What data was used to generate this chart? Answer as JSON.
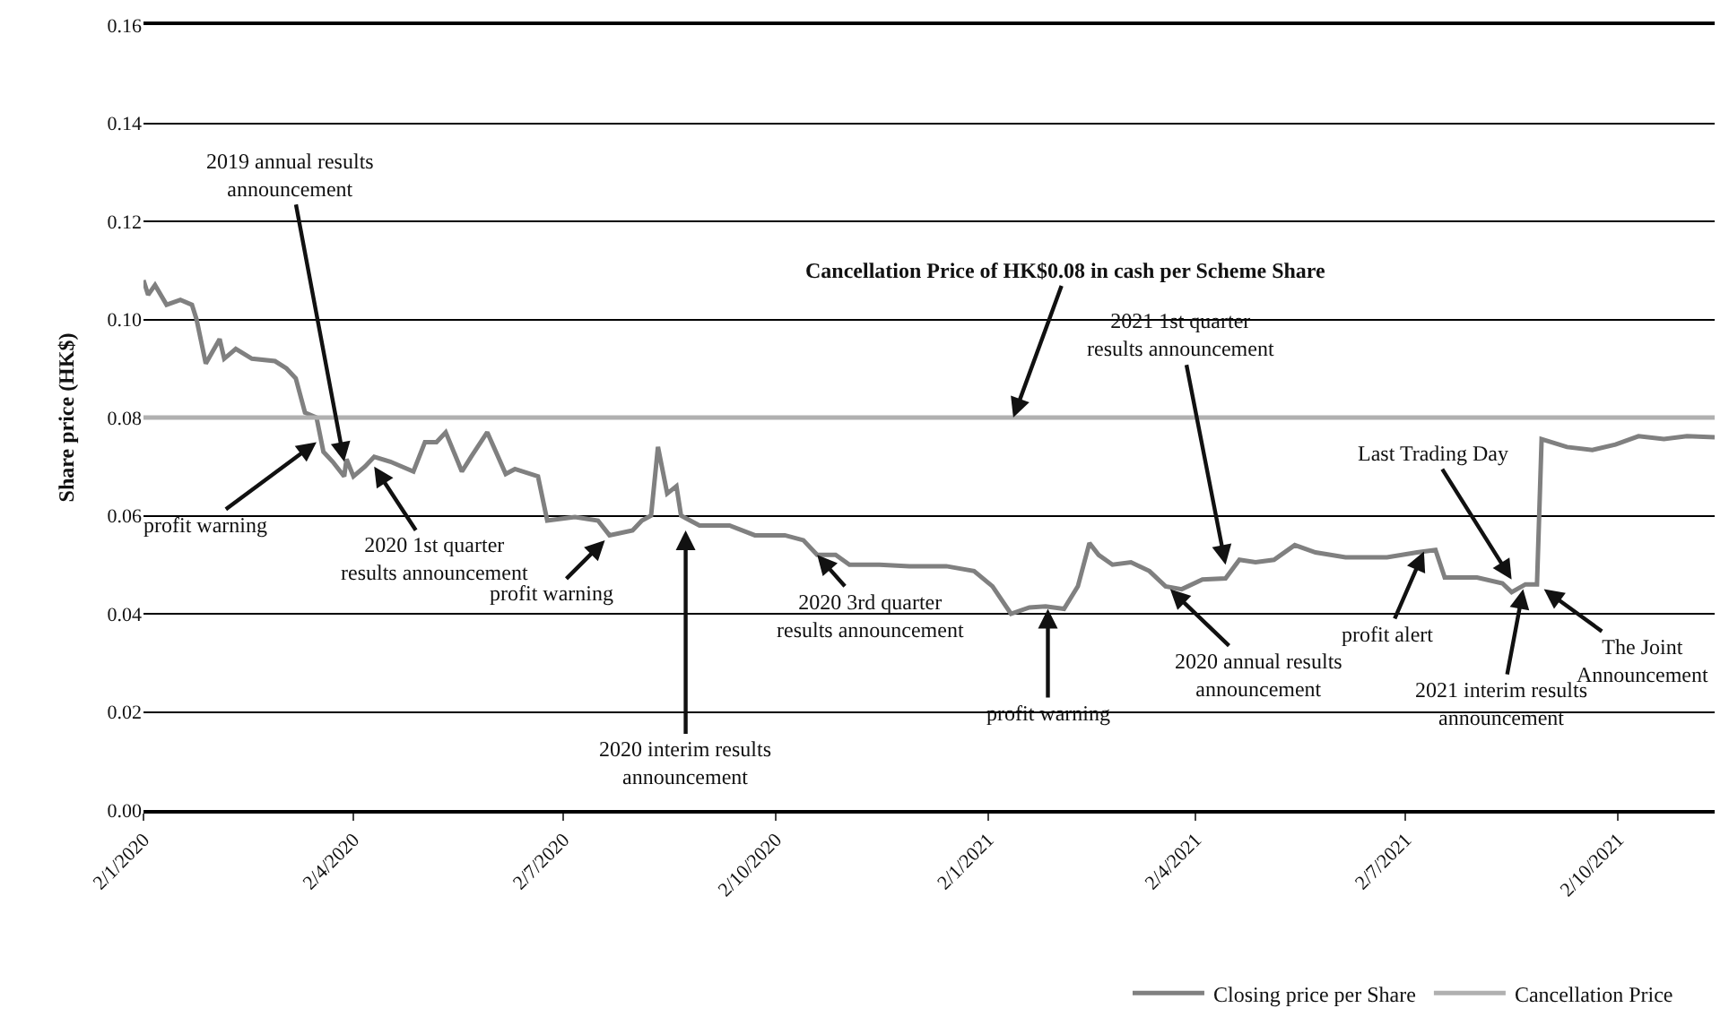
{
  "chart_data": {
    "type": "line",
    "ylabel": "Share price (HK$)",
    "xlim": [
      "2020-01-02",
      "2021-11-13"
    ],
    "xticks": [
      {
        "value": "2020-01-02",
        "label": "2/1/2020"
      },
      {
        "value": "2020-04-02",
        "label": "2/4/2020"
      },
      {
        "value": "2020-07-02",
        "label": "2/7/2020"
      },
      {
        "value": "2020-10-02",
        "label": "2/10/2020"
      },
      {
        "value": "2021-01-02",
        "label": "2/1/2021"
      },
      {
        "value": "2021-04-02",
        "label": "2/4/2021"
      },
      {
        "value": "2021-07-02",
        "label": "2/7/2021"
      },
      {
        "value": "2021-10-02",
        "label": "2/10/2021"
      }
    ],
    "ylim": [
      0,
      0.16
    ],
    "yticks": [
      {
        "value": 0,
        "label": "0.00"
      },
      {
        "value": 0.02,
        "label": "0.02"
      },
      {
        "value": 0.04,
        "label": "0.04"
      },
      {
        "value": 0.06,
        "label": "0.06"
      },
      {
        "value": 0.08,
        "label": "0.08"
      },
      {
        "value": 0.1,
        "label": "0.10"
      },
      {
        "value": 0.12,
        "label": "0.12"
      },
      {
        "value": 0.14,
        "label": "0.14"
      },
      {
        "value": 0.16,
        "label": "0.16"
      }
    ],
    "grid": "y",
    "legend": "bottom",
    "marker": "none",
    "line_style": "solid",
    "series": [
      {
        "name": "Closing price per Share",
        "color": "#808080",
        "x": [
          "2020-01-02",
          "2020-01-04",
          "2020-01-07",
          "2020-01-12",
          "2020-01-18",
          "2020-01-23",
          "2020-01-25",
          "2020-01-29",
          "2020-02-04",
          "2020-02-06",
          "2020-02-11",
          "2020-02-18",
          "2020-02-28",
          "2020-03-04",
          "2020-03-08",
          "2020-03-12",
          "2020-03-17",
          "2020-03-20",
          "2020-03-24",
          "2020-03-29",
          "2020-03-30",
          "2020-04-02",
          "2020-04-07",
          "2020-04-11",
          "2020-04-18",
          "2020-04-28",
          "2020-05-03",
          "2020-05-08",
          "2020-05-12",
          "2020-05-19",
          "2020-05-23",
          "2020-05-30",
          "2020-06-07",
          "2020-06-11",
          "2020-06-21",
          "2020-06-25",
          "2020-07-07",
          "2020-07-17",
          "2020-07-22",
          "2020-08-01",
          "2020-08-05",
          "2020-08-09",
          "2020-08-12",
          "2020-08-16",
          "2020-08-20",
          "2020-08-22",
          "2020-08-30",
          "2020-09-12",
          "2020-09-23",
          "2020-10-06",
          "2020-10-14",
          "2020-10-20",
          "2020-10-28",
          "2020-11-03",
          "2020-11-16",
          "2020-11-29",
          "2020-12-15",
          "2020-12-27",
          "2021-01-04",
          "2021-01-12",
          "2021-01-20",
          "2021-01-27",
          "2021-02-04",
          "2021-02-10",
          "2021-02-15",
          "2021-02-19",
          "2021-02-25",
          "2021-03-05",
          "2021-03-13",
          "2021-03-20",
          "2021-03-27",
          "2021-04-05",
          "2021-04-15",
          "2021-04-21",
          "2021-04-28",
          "2021-05-06",
          "2021-05-15",
          "2021-05-24",
          "2021-06-06",
          "2021-06-24",
          "2021-07-07",
          "2021-07-15",
          "2021-07-19",
          "2021-08-02",
          "2021-08-13",
          "2021-08-17",
          "2021-08-23",
          "2021-08-28",
          "2021-08-30",
          "2021-09-10",
          "2021-09-21",
          "2021-10-01",
          "2021-10-11",
          "2021-10-22",
          "2021-11-01",
          "2021-11-13"
        ],
        "values": [
          0.108,
          0.105,
          0.107,
          0.103,
          0.104,
          0.103,
          0.1,
          0.091,
          0.096,
          0.092,
          0.094,
          0.092,
          0.0915,
          0.09,
          0.088,
          0.081,
          0.08,
          0.073,
          0.071,
          0.068,
          0.0715,
          0.068,
          0.07,
          0.072,
          0.071,
          0.069,
          0.075,
          0.075,
          0.077,
          0.069,
          0.072,
          0.077,
          0.0685,
          0.0695,
          0.068,
          0.059,
          0.0597,
          0.059,
          0.056,
          0.057,
          0.059,
          0.06,
          0.074,
          0.0645,
          0.066,
          0.06,
          0.058,
          0.058,
          0.056,
          0.056,
          0.055,
          0.052,
          0.052,
          0.05,
          0.05,
          0.0497,
          0.0497,
          0.0487,
          0.0456,
          0.04,
          0.0413,
          0.0415,
          0.041,
          0.0456,
          0.0544,
          0.052,
          0.05,
          0.0505,
          0.0487,
          0.0456,
          0.045,
          0.047,
          0.0472,
          0.051,
          0.0505,
          0.051,
          0.054,
          0.0525,
          0.0515,
          0.0515,
          0.0525,
          0.053,
          0.0474,
          0.0474,
          0.0462,
          0.0444,
          0.046,
          0.046,
          0.0756,
          0.074,
          0.0734,
          0.0745,
          0.0762,
          0.0756,
          0.0762,
          0.076
        ]
      },
      {
        "name": "Cancellation Price",
        "color": "#b0b0b0",
        "x": [
          "2020-01-02",
          "2021-11-13"
        ],
        "values": [
          0.08,
          0.08
        ]
      }
    ],
    "annotations": [
      {
        "text": "2019 annual results\nannouncement",
        "x": "2020-03-29",
        "y": 0.071
      },
      {
        "text": "profit warning",
        "x": "2020-03-17",
        "y": 0.075
      },
      {
        "text": "2020 1st quarter\nresults announcement",
        "x": "2020-04-11",
        "y": 0.07
      },
      {
        "text": "profit warning",
        "x": "2020-07-20",
        "y": 0.055
      },
      {
        "text": "2020 interim results\nannouncement",
        "x": "2020-08-24",
        "y": 0.057
      },
      {
        "text": "2020 3rd quarter\nresults announcement",
        "x": "2020-10-20",
        "y": 0.052
      },
      {
        "text": "profit warning",
        "x": "2021-01-28",
        "y": 0.041
      },
      {
        "text": "2021 1st quarter\nresults announcement",
        "x": "2021-04-15",
        "y": 0.05
      },
      {
        "text": "2020 annual results\nannouncement",
        "x": "2021-03-22",
        "y": 0.045
      },
      {
        "text": "profit alert",
        "x": "2021-07-10",
        "y": 0.0527
      },
      {
        "text": "Last Trading Day",
        "x": "2021-08-17",
        "y": 0.047
      },
      {
        "text": "2021 interim results\nannouncement",
        "x": "2021-08-22",
        "y": 0.045
      },
      {
        "text": "The Joint\nAnnouncement",
        "x": "2021-08-31",
        "y": 0.045
      },
      {
        "text": "Cancellation Price of HK$0.08 in cash per Scheme Share",
        "x": "2021-01-13",
        "y": 0.08
      }
    ]
  }
}
